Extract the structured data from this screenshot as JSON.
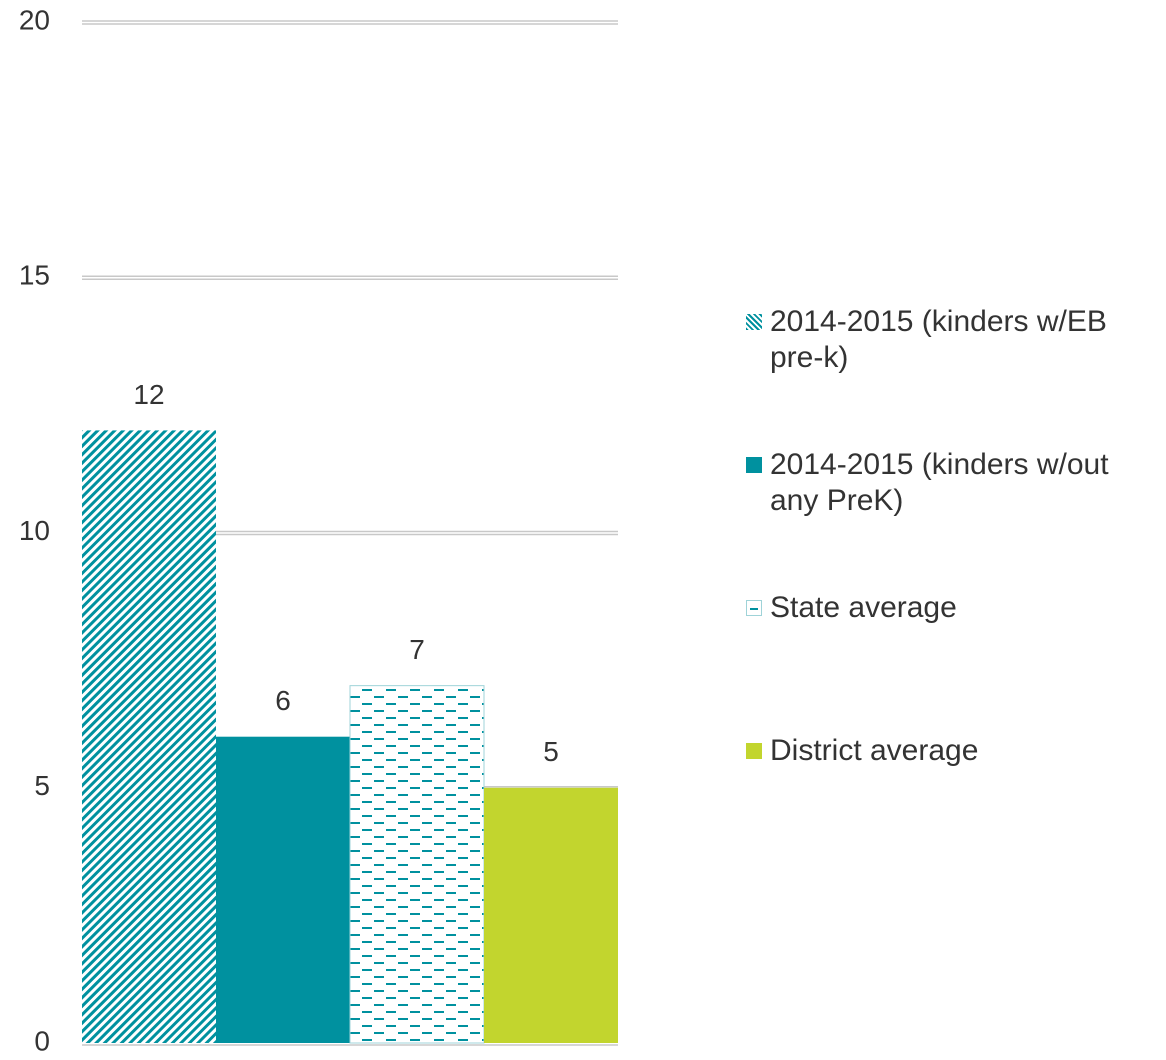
{
  "chart_data": {
    "type": "bar",
    "categories": [
      null
    ],
    "series": [
      {
        "name": "2014-2015 (kinders w/EB pre-k)",
        "color": "#00919f",
        "pattern": "diagonal",
        "values": [
          12
        ]
      },
      {
        "name": "2014-2015 (kinders w/out any PreK)",
        "color": "#00919f",
        "pattern": "solid",
        "values": [
          6
        ]
      },
      {
        "name": "State average",
        "color": "#00919f",
        "pattern": "dashes",
        "values": [
          7
        ]
      },
      {
        "name": "District average",
        "color": "#c2d52e",
        "pattern": "solid",
        "values": [
          5
        ]
      }
    ],
    "ylim": [
      0,
      20
    ],
    "yticks": [
      0,
      5,
      10,
      15,
      20
    ],
    "grid": true,
    "legend": "right"
  }
}
